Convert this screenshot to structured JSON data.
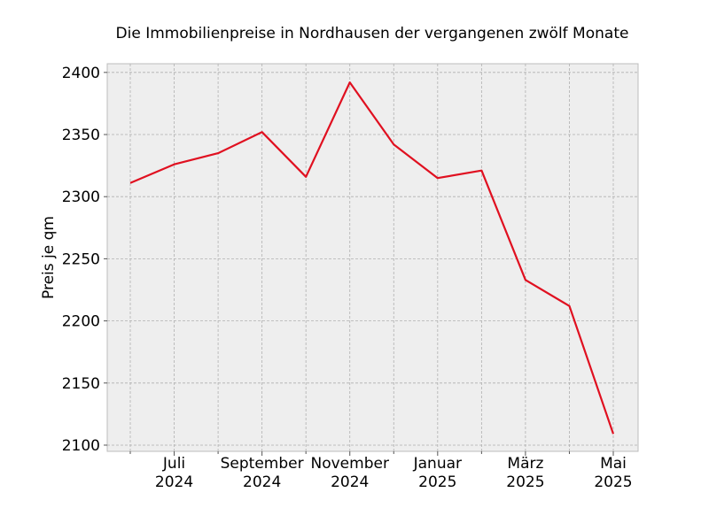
{
  "chart_data": {
    "type": "line",
    "title": "Die Immobilienpreise in Nordhausen der vergangenen zwölf Monate",
    "xlabel": "",
    "ylabel": "Preis je qm",
    "ylim": [
      2095,
      2407
    ],
    "yticks": [
      2100,
      2150,
      2200,
      2250,
      2300,
      2350,
      2400
    ],
    "grid": true,
    "x": [
      "2024-06",
      "2024-07",
      "2024-08",
      "2024-09",
      "2024-10",
      "2024-11",
      "2024-12",
      "2025-01",
      "2025-02",
      "2025-03",
      "2025-04",
      "2025-05"
    ],
    "xtick_labels": [
      {
        "month": "2024-07",
        "line1": "Juli",
        "line2": "2024"
      },
      {
        "month": "2024-09",
        "line1": "September",
        "line2": "2024"
      },
      {
        "month": "2024-11",
        "line1": "November",
        "line2": "2024"
      },
      {
        "month": "2025-01",
        "line1": "Januar",
        "line2": "2025"
      },
      {
        "month": "2025-03",
        "line1": "März",
        "line2": "2025"
      },
      {
        "month": "2025-05",
        "line1": "Mai",
        "line2": "2025"
      }
    ],
    "series": [
      {
        "color": "#e01020",
        "values": [
          2311,
          2326,
          2335,
          2352,
          2316,
          2392,
          2342,
          2315,
          2321,
          2233,
          2212,
          2109
        ]
      }
    ],
    "colors": {
      "plot_background": "#eeeeee",
      "axes_edge": "#bcbcbc"
    }
  }
}
